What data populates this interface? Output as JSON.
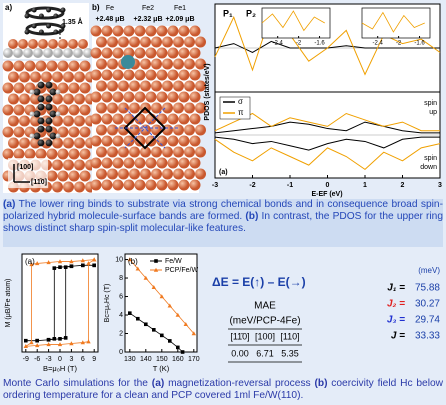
{
  "panel_a": {
    "label": "a)",
    "bond_length": "1.35 Å",
    "axis_100": "[100]",
    "axis_110": "[11̄0]"
  },
  "panel_b": {
    "label": "b)",
    "atoms": [
      "Fe",
      "Fe2",
      "Fe1"
    ],
    "moments": [
      "+2.48 μB",
      "+2.32 μB",
      "+2.09 μB"
    ]
  },
  "pdos": {
    "ylabel": "PDOS (states/eV)",
    "xlabel": "E-EF (eV)",
    "panel_label": "(a)",
    "peak_labels": [
      "P₁",
      "P₂"
    ],
    "xlim": [
      -3,
      3
    ],
    "xticks": [
      -3,
      -2,
      -1,
      0,
      1,
      2,
      3
    ],
    "upper": {
      "ylim": [
        -1,
        1
      ],
      "x": [
        -3,
        -2.5,
        -2,
        -1.5,
        -1,
        -0.5,
        0,
        0.5,
        1,
        1.5,
        2,
        2.5,
        3
      ],
      "series": [
        {
          "name": "σ",
          "color": "#000000",
          "values": [
            0,
            0.1,
            -0.1,
            0.15,
            0,
            0,
            0,
            0.05,
            0,
            0,
            0,
            0,
            0
          ]
        },
        {
          "name": "π",
          "color": "#f0a000",
          "values": [
            -0.2,
            0.7,
            -0.5,
            0.8,
            0.3,
            -0.3,
            0,
            0.4,
            -0.6,
            0.3,
            0.1,
            0.2,
            -0.1
          ]
        }
      ]
    },
    "lower": {
      "ylim": [
        -1,
        1
      ],
      "x": [
        -3,
        -2.5,
        -2,
        -1.5,
        -1,
        -0.5,
        0,
        0.5,
        1,
        1.5,
        2,
        2.5,
        3
      ],
      "spin_up": [
        "spin",
        "up"
      ],
      "spin_down": [
        "spin",
        "down"
      ],
      "series": [
        {
          "color": "#000000",
          "up": [
            0.05,
            0.1,
            0.15,
            0.2,
            0.3,
            0.25,
            0.15,
            0.1,
            0.3,
            0.2,
            0.1,
            0.05,
            0.05
          ],
          "down": [
            -0.05,
            -0.1,
            -0.2,
            -0.15,
            -0.25,
            -0.35,
            -0.2,
            -0.1,
            -0.15,
            -0.3,
            -0.1,
            -0.05,
            -0.05
          ]
        },
        {
          "color": "#f0a000",
          "up": [
            0.1,
            0.3,
            0.5,
            0.2,
            0.4,
            0.3,
            0.2,
            0.5,
            0.35,
            0.2,
            0.3,
            0.1,
            0.1
          ],
          "down": [
            -0.1,
            -0.4,
            -0.6,
            -0.3,
            -0.5,
            -0.7,
            -0.3,
            -0.5,
            -0.8,
            -0.4,
            -0.6,
            -0.3,
            -0.2
          ]
        }
      ]
    },
    "insets": [
      {
        "xlim": [
          -2.7,
          -1.4
        ],
        "xticks": [
          -2.4,
          -2,
          -1.6
        ],
        "x": [
          -2.7,
          -2.5,
          -2.3,
          -2.1,
          -1.9,
          -1.7,
          -1.5
        ],
        "ylim": [
          -1,
          1
        ],
        "values": [
          0,
          0.6,
          -0.3,
          0.8,
          -0.5,
          0.4,
          0
        ],
        "color": "#f0a000"
      },
      {
        "xlim": [
          -2.7,
          -1.4
        ],
        "xticks": [
          -2.4,
          -2,
          -1.6
        ],
        "x": [
          -2.7,
          -2.5,
          -2.3,
          -2.1,
          -1.9,
          -1.7,
          -1.5
        ],
        "ylim": [
          -1,
          1
        ],
        "values": [
          0,
          -0.4,
          0.7,
          -0.6,
          0.5,
          -0.3,
          0
        ],
        "color": "#f0a000"
      }
    ]
  },
  "caption_1": [
    {
      "text": "(a)",
      "bold": true
    },
    {
      "text": " The lower ring binds to substrate via strong chemical bonds and in consequence broad spin-polarized hybrid molecule-surface bands are formed. ",
      "bold": false
    },
    {
      "text": "(b)",
      "bold": true
    },
    {
      "text": " In contrast, the PDOS for the upper ring shows distinct sharp spin-split molecular-like features.",
      "bold": false
    }
  ],
  "hysteresis": {
    "panel_label": "(a)",
    "xlabel": "B=μ₀H (T)",
    "ylabel": "M (μB/Fe atom)",
    "xlim": [
      -10,
      10
    ],
    "xticks": [
      -9,
      -6,
      -3,
      0,
      3,
      6,
      9
    ],
    "ylim": [
      -2.6,
      2.6
    ],
    "series": [
      {
        "color": "#000000",
        "marker": "square",
        "x": [
          9,
          6,
          3,
          0,
          -1.5,
          -1.5,
          -3,
          -6,
          -9,
          -6,
          -3,
          0,
          1.5,
          1.5,
          3,
          6,
          9
        ],
        "values": [
          2,
          2,
          1.95,
          1.9,
          1.85,
          -1.9,
          -1.95,
          -2,
          -2,
          -2,
          -1.95,
          -1.9,
          -1.85,
          1.9,
          1.95,
          2,
          2
        ]
      },
      {
        "color": "#f07a20",
        "marker": "triangle",
        "x": [
          9,
          6,
          3,
          0,
          -3,
          -6,
          -7.5,
          -7.5,
          -9,
          -6,
          -3,
          0,
          3,
          6,
          7.5,
          7.5,
          9
        ],
        "values": [
          2.3,
          2.25,
          2.2,
          2.2,
          2.15,
          2.1,
          2.05,
          -2.1,
          -2.3,
          -2.25,
          -2.2,
          -2.2,
          -2.15,
          -2.1,
          -2.05,
          2.1,
          2.3
        ]
      }
    ]
  },
  "coercivity": {
    "panel_label": "(b)",
    "xlabel": "T (K)",
    "ylabel": "Bc=μ₀Hc (T)",
    "xlim": [
      127,
      172
    ],
    "xticks": [
      130,
      140,
      150,
      160,
      170
    ],
    "ylim": [
      0,
      10.6
    ],
    "yticks": [
      0,
      2,
      4,
      6,
      8,
      10
    ],
    "series": [
      {
        "name": "Fe/W",
        "color": "#000000",
        "marker": "square",
        "x": [
          130,
          135,
          140,
          145,
          150,
          155,
          160,
          163
        ],
        "values": [
          4.2,
          3.6,
          3,
          2.4,
          1.8,
          1.2,
          0.5,
          0
        ]
      },
      {
        "name": "PCP/Fe/W",
        "color": "#f07a20",
        "marker": "triangle",
        "x": [
          130,
          135,
          140,
          145,
          150,
          155,
          160,
          165,
          170
        ],
        "values": [
          10,
          9,
          8,
          7,
          6,
          5,
          4,
          3,
          2
        ]
      }
    ]
  },
  "energy": {
    "equation": "ΔE = E(↑) – E(→)",
    "unit": "(meV)",
    "couplings": [
      {
        "label": "J₁ =",
        "value": 75.88,
        "color": "#000000"
      },
      {
        "label": "J₂ =",
        "value": 30.27,
        "color": "#e02020"
      },
      {
        "label": "J₃ =",
        "value": 29.74,
        "color": "#2030d0"
      },
      {
        "label": "J =",
        "value": 33.33,
        "color": "#000000"
      }
    ]
  },
  "mae_table": {
    "title": "MAE",
    "unit": "(meV/PCP-4Fe)",
    "headers": [
      "[11̄0]",
      "[100]",
      "[110]"
    ],
    "values": [
      "0.00",
      "6.71",
      "5.35"
    ]
  },
  "caption_2": [
    {
      "text": "Monte Carlo simulations for the ",
      "bold": false
    },
    {
      "text": "(a)",
      "bold": true
    },
    {
      "text": " magnetization-reversal process ",
      "bold": false
    },
    {
      "text": "(b)",
      "bold": true
    },
    {
      "text": " coercivity field Hc below ordering temperature for a clean and PCP covered 1ml Fe/W(110).",
      "bold": false
    }
  ]
}
